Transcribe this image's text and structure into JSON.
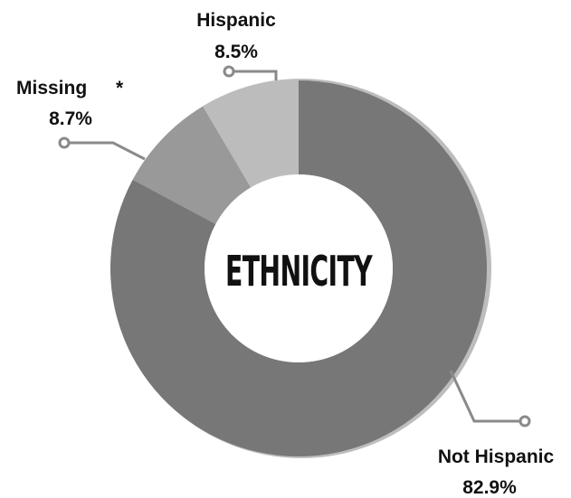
{
  "chart_data": {
    "type": "pie",
    "variant": "donut",
    "center_label": "ETHNICITY",
    "slices": [
      {
        "name": "Not Hispanic",
        "value": 82.9,
        "value_label": "82.9%",
        "color": "#777777"
      },
      {
        "name": "Missing",
        "marker": "*",
        "value": 8.7,
        "value_label": "8.7%",
        "color": "#999999"
      },
      {
        "name": "Hispanic",
        "value": 8.5,
        "value_label": "8.5%",
        "color": "#bcbcbc"
      }
    ]
  }
}
